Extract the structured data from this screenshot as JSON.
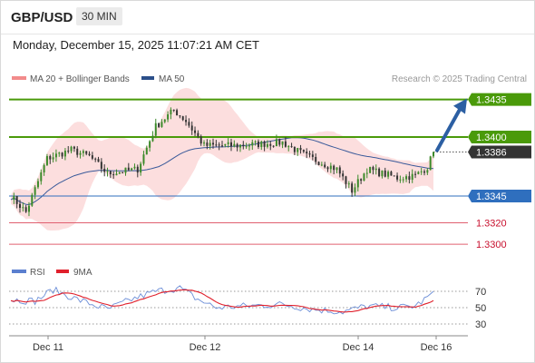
{
  "header": {
    "symbol": "GBP/USD",
    "timeframe": "30 MIN"
  },
  "datetime": "Monday, December 15, 2025 11:07:21 AM CET",
  "credit": "Research © 2025 Trading Central",
  "legend": {
    "ma20_bb": "MA 20 + Bollinger Bands",
    "ma50": "MA 50",
    "rsi": "RSI",
    "rsi_ma": "9MA"
  },
  "colors": {
    "green": "#4a9a0a",
    "blue": "#2f6fbe",
    "red": "#e06070",
    "band": "#fbd3d3",
    "dark": "#333333",
    "arrow": "#2c5fa3",
    "candle_up": "#3c8a2a",
    "candle_down": "#333333"
  },
  "levels": [
    {
      "value": 1.3435,
      "label": "1.3435",
      "kind": "resistance",
      "color": "#4a9a0a"
    },
    {
      "value": 1.34,
      "label": "1.3400",
      "kind": "resistance",
      "color": "#4a9a0a"
    },
    {
      "value": 1.3386,
      "label": "1.3386",
      "kind": "current",
      "color": "#333333"
    },
    {
      "value": 1.3345,
      "label": "1.3345",
      "kind": "pivot",
      "color": "#2f6fbe"
    },
    {
      "value": 1.332,
      "label": "1.3320",
      "kind": "support",
      "color": "#e06070"
    },
    {
      "value": 1.33,
      "label": "1.3300",
      "kind": "support",
      "color": "#e06070"
    }
  ],
  "chart_data": {
    "type": "candlestick",
    "title": "GBP/USD",
    "timeframe": "30 MIN",
    "x_ticks": [
      "Dec 11",
      "Dec 12",
      "Dec 14",
      "Dec 16"
    ],
    "ylim": [
      1.329,
      1.3445
    ],
    "candle_count": 140,
    "price_path": [
      {
        "x": 0,
        "y": 1.3345
      },
      {
        "x": 5,
        "y": 1.333
      },
      {
        "x": 12,
        "y": 1.338
      },
      {
        "x": 20,
        "y": 1.3388
      },
      {
        "x": 26,
        "y": 1.3382
      },
      {
        "x": 32,
        "y": 1.3366
      },
      {
        "x": 42,
        "y": 1.337
      },
      {
        "x": 48,
        "y": 1.341
      },
      {
        "x": 54,
        "y": 1.3425
      },
      {
        "x": 58,
        "y": 1.3415
      },
      {
        "x": 64,
        "y": 1.3392
      },
      {
        "x": 75,
        "y": 1.3392
      },
      {
        "x": 90,
        "y": 1.3395
      },
      {
        "x": 98,
        "y": 1.3382
      },
      {
        "x": 108,
        "y": 1.337
      },
      {
        "x": 113,
        "y": 1.335
      },
      {
        "x": 118,
        "y": 1.337
      },
      {
        "x": 128,
        "y": 1.3362
      },
      {
        "x": 134,
        "y": 1.3364
      },
      {
        "x": 138,
        "y": 1.3372
      },
      {
        "x": 140,
        "y": 1.3386
      }
    ],
    "forecast_arrow": {
      "from": 1.3386,
      "to": 1.3435
    },
    "rsi": {
      "levels": [
        70,
        50,
        30
      ],
      "path": [
        {
          "x": 0,
          "y": 60
        },
        {
          "x": 8,
          "y": 58
        },
        {
          "x": 14,
          "y": 72
        },
        {
          "x": 22,
          "y": 60
        },
        {
          "x": 32,
          "y": 48
        },
        {
          "x": 40,
          "y": 60
        },
        {
          "x": 48,
          "y": 70
        },
        {
          "x": 56,
          "y": 74
        },
        {
          "x": 62,
          "y": 60
        },
        {
          "x": 68,
          "y": 50
        },
        {
          "x": 78,
          "y": 52
        },
        {
          "x": 90,
          "y": 54
        },
        {
          "x": 100,
          "y": 48
        },
        {
          "x": 110,
          "y": 45
        },
        {
          "x": 118,
          "y": 52
        },
        {
          "x": 128,
          "y": 50
        },
        {
          "x": 134,
          "y": 52
        },
        {
          "x": 138,
          "y": 62
        },
        {
          "x": 140,
          "y": 70
        }
      ]
    }
  }
}
